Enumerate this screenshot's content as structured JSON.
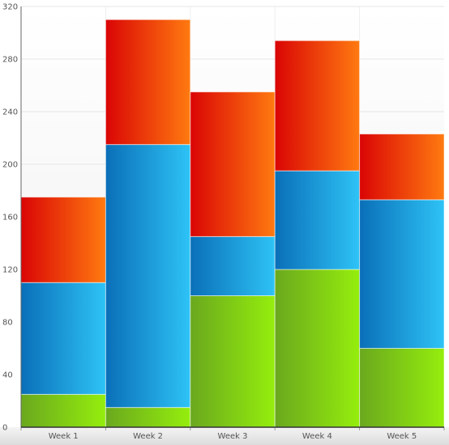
{
  "chart_data": {
    "type": "bar",
    "stacked": true,
    "categories": [
      "Week 1",
      "Week 2",
      "Week 3",
      "Week 4",
      "Week 5"
    ],
    "series": [
      {
        "values": [
          25,
          15,
          100,
          120,
          60
        ],
        "color_start": "#6aa81e",
        "color_end": "#95ee0d"
      },
      {
        "values": [
          85,
          200,
          45,
          75,
          113
        ],
        "color_start": "#0a6fb8",
        "color_end": "#2ec3f6"
      },
      {
        "values": [
          65,
          95,
          110,
          99,
          50
        ],
        "color_start": "#da0505",
        "color_end": "#ff7a10"
      }
    ],
    "title": "",
    "xlabel": "",
    "ylabel": "",
    "ylim": [
      0,
      320
    ],
    "yticks": [
      "0",
      "40",
      "80",
      "120",
      "160",
      "200",
      "240",
      "280",
      "320"
    ],
    "grid": true,
    "legend": "none"
  }
}
